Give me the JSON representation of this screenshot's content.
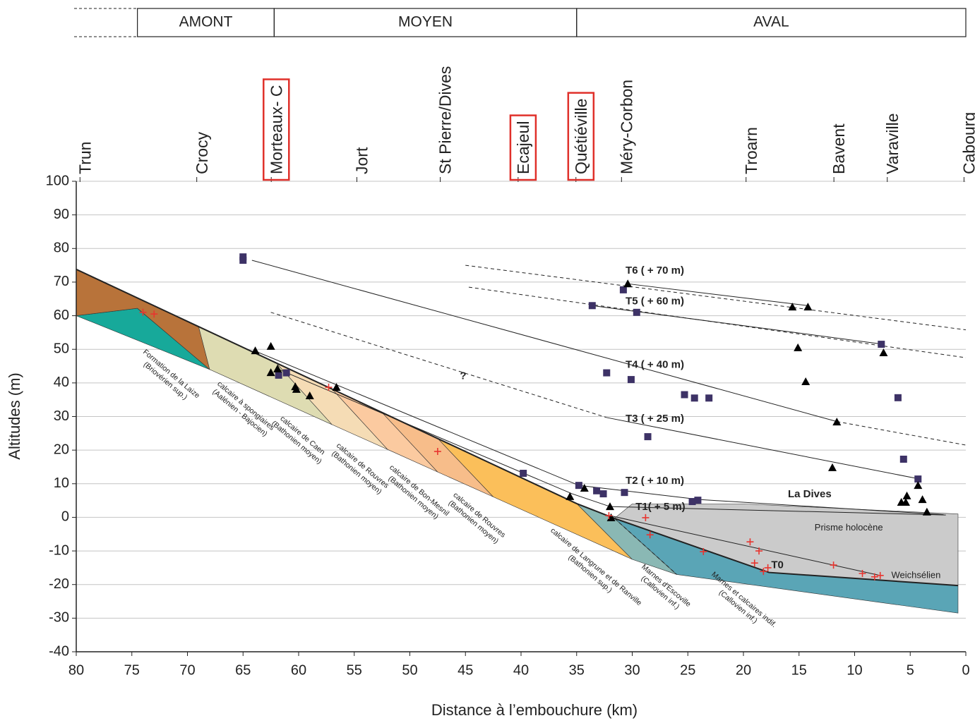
{
  "chart_data": {
    "type": "scatter",
    "xlabel": "Distance à l’embouchure (km)",
    "ylabel": "Altitudes (m)",
    "xlim": [
      80,
      0
    ],
    "ylim": [
      -40,
      100
    ],
    "xticks": [
      80,
      75,
      70,
      65,
      60,
      55,
      50,
      45,
      40,
      35,
      30,
      25,
      20,
      15,
      10,
      5,
      0
    ],
    "yticks": [
      -40,
      -30,
      -20,
      -10,
      0,
      10,
      20,
      30,
      40,
      50,
      60,
      70,
      80,
      90,
      100
    ],
    "grid": true,
    "zones": [
      {
        "label": "AMONT",
        "from": 74.5,
        "to": 62.2
      },
      {
        "label": "MOYEN",
        "from": 62.2,
        "to": 35
      },
      {
        "label": "AVAL",
        "from": 35,
        "to": 0
      }
    ],
    "locations": [
      {
        "label": "Trun",
        "x": 79.6,
        "highlight": false
      },
      {
        "label": "Crocy",
        "x": 69.1,
        "highlight": false
      },
      {
        "label": "Morteaux- C",
        "x": 62.4,
        "highlight": true
      },
      {
        "label": "Jort",
        "x": 54.7,
        "highlight": false
      },
      {
        "label": "St Pierre/Dives",
        "x": 47.2,
        "highlight": false
      },
      {
        "label": "Ecajeul",
        "x": 40.2,
        "highlight": true
      },
      {
        "label": "Quétiéville",
        "x": 35,
        "highlight": true
      },
      {
        "label": "Méry-Corbon",
        "x": 30.9,
        "highlight": false
      },
      {
        "label": "Troarn",
        "x": 19.7,
        "highlight": false
      },
      {
        "label": "Bavent",
        "x": 11.8,
        "highlight": false
      },
      {
        "label": "Varaville",
        "x": 7,
        "highlight": false
      },
      {
        "label": "Cabourg",
        "x": 0.1,
        "highlight": false
      }
    ],
    "formations": [
      {
        "color": "#17a99a",
        "x": [
          80,
          74.5,
          68
        ],
        "values": [
          60,
          62.2,
          44
        ]
      },
      {
        "color": "#b8733a",
        "x": [
          80,
          80,
          74.5,
          68,
          69
        ],
        "values": [
          73.8,
          60,
          62.2,
          44,
          56.8
        ]
      },
      {
        "color": "#dedcb2",
        "x": [
          69,
          68,
          57,
          62
        ],
        "values": [
          56.8,
          44,
          27.6,
          45.9
        ]
      },
      {
        "color": "#f5dcb5",
        "x": [
          62,
          57,
          52,
          57
        ],
        "values": [
          45.9,
          27.6,
          20.2,
          38.2
        ]
      },
      {
        "color": "#fbcaa0",
        "x": [
          57,
          52,
          47.5,
          52.5
        ],
        "values": [
          38.2,
          20.2,
          13.5,
          31.2
        ]
      },
      {
        "color": "#f7bd8a",
        "x": [
          52.5,
          47.5,
          42.5,
          47.5
        ],
        "values": [
          31.2,
          13.5,
          6.1,
          23.5
        ]
      },
      {
        "color": "#fbbf5a",
        "x": [
          47.5,
          42.5,
          30,
          35
        ],
        "values": [
          23.5,
          6.1,
          -12.5,
          4.1
        ]
      },
      {
        "color": "#8ab8b4",
        "x": [
          35,
          30,
          26,
          31.6
        ],
        "values": [
          4.1,
          -12.5,
          -17,
          -0.3
        ]
      },
      {
        "color": "#5aa5b6",
        "x": [
          31.6,
          26,
          0.7,
          0.7,
          17.7
        ],
        "values": [
          -0.3,
          -17,
          -28.5,
          -20.3,
          -16.4
        ]
      },
      {
        "color": "#cbcbcb",
        "x": [
          30,
          20,
          0.7,
          0.7,
          17.7,
          31.6
        ],
        "values": [
          4,
          4,
          1,
          -20.3,
          -16.4,
          -0.3
        ]
      }
    ],
    "formation_labels": [
      {
        "lines": [
          "Formation de la Laize",
          "(Briovérien sup.)"
        ],
        "x": 71.7,
        "y": 41.7
      },
      {
        "lines": [
          "calcaire à spongiaires",
          "(Aalénien - Bajocien)"
        ],
        "x": 65,
        "y": 32.2
      },
      {
        "lines": [
          "calcaire de Caen",
          "(Bathonien moyen)"
        ],
        "x": 59.9,
        "y": 23.4
      },
      {
        "lines": [
          "calcaire de Rouvres",
          "(Bathonien moyen)"
        ],
        "x": 54.5,
        "y": 14.4
      },
      {
        "lines": [
          "calcaire de Bon-Mesnil",
          "(Bathonien moyen)"
        ],
        "x": 49.4,
        "y": 7
      },
      {
        "lines": [
          "calcaire de Rouvres",
          "(Bathonien moyen)"
        ],
        "x": 44,
        "y": -0.3
      },
      {
        "lines": [
          "calcaire de Langrune et de Ranville",
          "(Bathonien sup.)"
        ],
        "x": 33.5,
        "y": -15.7
      },
      {
        "lines": [
          "Marnes d'Escoville",
          "(Callovien inf.)"
        ],
        "x": 27.2,
        "y": -21.3
      },
      {
        "lines": [
          "Marnes et calcaires indif.",
          "(Callovien inf.)"
        ],
        "x": 20.2,
        "y": -25.5
      }
    ],
    "lines": [
      {
        "style": "solid",
        "width": 2,
        "x": [
          80,
          35,
          31.6,
          17.7,
          0.7
        ],
        "values": [
          73.8,
          4.1,
          -0.3,
          -16.4,
          -20.3
        ]
      },
      {
        "style": "dashed",
        "width": 1,
        "x": [
          45,
          0
        ],
        "values": [
          75,
          55.8
        ]
      },
      {
        "style": "solid",
        "width": 1,
        "x": [
          30.4,
          14.2
        ],
        "values": [
          69.5,
          63
        ]
      },
      {
        "style": "dashed",
        "width": 1,
        "x": [
          44.7,
          0
        ],
        "values": [
          68.5,
          47.5
        ]
      },
      {
        "style": "solid",
        "width": 1,
        "x": [
          33.6,
          7.4
        ],
        "values": [
          63,
          51.5
        ]
      },
      {
        "style": "solid",
        "width": 1,
        "x": [
          64.2,
          11.6
        ],
        "values": [
          76.5,
          28.5
        ]
      },
      {
        "style": "dashed",
        "width": 1,
        "x": [
          11.6,
          0
        ],
        "values": [
          28.5,
          21.5
        ]
      },
      {
        "style": "dashed",
        "width": 1,
        "x": [
          62.5,
          32.3
        ],
        "values": [
          61,
          29.7
        ]
      },
      {
        "style": "solid",
        "width": 1,
        "x": [
          32.3,
          4.3
        ],
        "values": [
          29.7,
          11.5
        ]
      },
      {
        "style": "solid",
        "width": 1,
        "x": [
          64,
          34.8,
          24,
          2
        ],
        "values": [
          49.6,
          9.5,
          5.3,
          0.8
        ]
      },
      {
        "style": "solid",
        "width": 1,
        "x": [
          61.7,
          35.4,
          32,
          1.8
        ],
        "values": [
          43.9,
          7,
          3.2,
          0.7
        ]
      },
      {
        "style": "solid",
        "width": 1,
        "x": [
          32,
          7.7
        ],
        "values": [
          0.5,
          -17.3
        ]
      },
      {
        "style": "dashed",
        "width": 1,
        "x": [
          31.6,
          26
        ],
        "values": [
          -0.3,
          -17
        ]
      }
    ],
    "series": [
      {
        "marker": "square",
        "color": "#3d3266",
        "x": [
          65,
          65,
          33.6,
          29.6,
          30.8,
          32.3,
          30.1,
          25.3,
          24.4,
          23.1,
          28.6,
          7.6,
          6.1,
          5.6,
          4.3,
          61.8,
          61.1,
          39.8,
          34.8,
          33.2,
          32.6,
          30.7,
          24.6,
          24.1
        ],
        "values": [
          77.5,
          76.5,
          63,
          61,
          67.7,
          43,
          41,
          36.5,
          35.5,
          35.5,
          24,
          51.5,
          35.6,
          17.3,
          11.4,
          42.3,
          43,
          13.1,
          9.5,
          7.9,
          7,
          7.4,
          4.7,
          5.1
        ]
      },
      {
        "marker": "triangle",
        "color": "#000000",
        "x": [
          30.4,
          15.6,
          14.2,
          15.1,
          14.4,
          7.4,
          11.6,
          12,
          5.8,
          5.3,
          4.3,
          3.9,
          3.5,
          5.4,
          63.9,
          62.5,
          62.5,
          61.9,
          60.3,
          60.2,
          59,
          56.6,
          35.6,
          34.3,
          32,
          31.9
        ],
        "values": [
          69.5,
          62.6,
          62.6,
          50.5,
          40.4,
          49,
          28.4,
          14.8,
          4.5,
          6.4,
          9.5,
          5.3,
          1.6,
          4.5,
          49.6,
          50.9,
          43.1,
          44.2,
          38.9,
          38.1,
          36.2,
          38.7,
          6.2,
          8.7,
          3.2,
          -0.1
        ]
      },
      {
        "marker": "cross",
        "color": "#e8352f",
        "x": [
          74,
          73,
          57.3,
          47.5,
          32.1,
          28.8,
          28.4,
          23.6,
          19.4,
          18.6,
          19,
          18.2,
          17.8,
          11.9,
          9.3,
          8.2,
          7.7
        ],
        "values": [
          61,
          60.5,
          38.7,
          19.6,
          0.5,
          -0.1,
          -5.2,
          -10.2,
          -7.3,
          -10,
          -13.6,
          -16.1,
          -15,
          -14.2,
          -16.7,
          -17.7,
          -17.3
        ]
      }
    ],
    "annotations": [
      {
        "text": "T6 ( + 70 m)",
        "x": 30.6,
        "y": 73.3,
        "weight": "bold"
      },
      {
        "text": "T5 ( + 60 m)",
        "x": 30.6,
        "y": 64.2,
        "weight": "bold"
      },
      {
        "text": "T4 ( + 40 m)",
        "x": 30.6,
        "y": 45.3,
        "weight": "bold"
      },
      {
        "text": "T3 ( + 25 m)",
        "x": 30.6,
        "y": 29.3,
        "weight": "bold"
      },
      {
        "text": "T2 ( + 10 m)",
        "x": 30.6,
        "y": 10.8,
        "weight": "bold"
      },
      {
        "text": "T1( + 5 m)",
        "x": 29.7,
        "y": 3,
        "weight": "bold"
      },
      {
        "text": "T0",
        "x": 17.5,
        "y": -14.3,
        "weight": "bold"
      },
      {
        "text": "La Dives",
        "x": 16,
        "y": 6.8,
        "weight": "bold"
      },
      {
        "text": "?",
        "x": 45.5,
        "y": 42,
        "weight": "bold"
      },
      {
        "text": "Prisme holocène",
        "x": 13.6,
        "y": -3.2,
        "weight": "normal"
      },
      {
        "text": "Weichsélien",
        "x": 6.7,
        "y": -17.3,
        "weight": "normal"
      }
    ]
  }
}
